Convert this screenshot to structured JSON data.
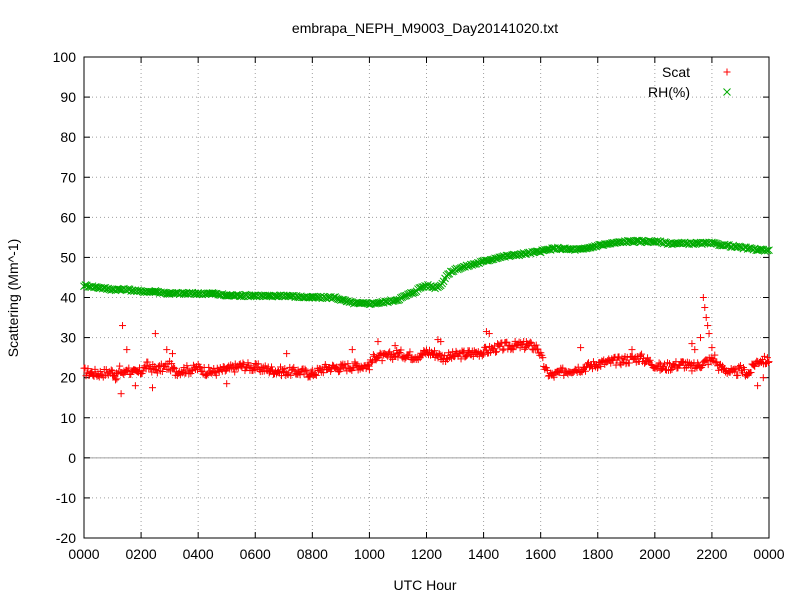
{
  "chart_data": {
    "type": "scatter",
    "title": "embrapa_NEPH_M9003_Day20141020.txt",
    "xlabel": "UTC Hour",
    "ylabel": "Scattering (Mm^-1)",
    "xlim": [
      0,
      24
    ],
    "ylim": [
      -20,
      100
    ],
    "x_tick_labels": [
      "0000",
      "0200",
      "0400",
      "0600",
      "0800",
      "1000",
      "1200",
      "1400",
      "1600",
      "1800",
      "2000",
      "2200",
      "0000"
    ],
    "y_tick_labels": [
      "-20",
      "-10",
      "0",
      "10",
      "20",
      "30",
      "40",
      "50",
      "60",
      "70",
      "80",
      "90",
      "100"
    ],
    "grid": true,
    "zero_line": true,
    "legend_position": "top-right",
    "series": [
      {
        "name": "Scat",
        "marker": "+",
        "color": "#ff0000",
        "x": [
          0.0,
          0.5,
          1.0,
          1.15,
          1.25,
          1.4,
          1.5,
          1.7,
          2.0,
          2.2,
          2.5,
          2.8,
          3.0,
          3.2,
          3.5,
          3.8,
          4.0,
          4.3,
          4.6,
          5.0,
          5.3,
          5.5,
          6.0,
          6.5,
          7.0,
          7.5,
          8.0,
          8.5,
          9.0,
          9.5,
          10.0,
          10.2,
          10.5,
          11.0,
          11.5,
          11.8,
          12.0,
          12.3,
          12.6,
          13.0,
          13.5,
          14.0,
          14.5,
          15.0,
          15.3,
          15.6,
          15.9,
          16.2,
          16.4,
          16.6,
          17.0,
          17.5,
          18.0,
          18.5,
          19.0,
          19.5,
          19.8,
          20.2,
          20.6,
          21.0,
          21.3,
          21.5,
          21.8,
          22.0,
          22.1,
          22.2,
          22.3,
          22.5,
          22.8,
          23.0,
          23.3,
          23.5,
          23.7,
          24.0
        ],
        "y": [
          21.5,
          21.0,
          21.5,
          20.0,
          22.0,
          21.0,
          22.5,
          21.0,
          21.5,
          23.0,
          22.0,
          22.5,
          23.0,
          21.5,
          22.0,
          22.0,
          22.5,
          21.5,
          21.5,
          22.0,
          22.5,
          23.0,
          22.5,
          22.0,
          21.5,
          21.5,
          21.0,
          22.5,
          22.5,
          23.0,
          23.0,
          25.5,
          25.0,
          26.0,
          25.5,
          25.5,
          26.5,
          26.0,
          25.0,
          25.5,
          26.0,
          26.5,
          27.5,
          28.0,
          28.0,
          28.0,
          27.5,
          21.5,
          20.5,
          21.0,
          22.0,
          22.5,
          23.5,
          24.0,
          24.5,
          25.0,
          24.0,
          22.5,
          23.0,
          23.5,
          22.5,
          23.0,
          24.0,
          24.5,
          25.0,
          23.0,
          22.5,
          22.0,
          21.0,
          22.0,
          21.0,
          23.5,
          24.5,
          24.0
        ],
        "outliers_x": [
          1.3,
          1.35,
          1.5,
          1.8,
          2.4,
          2.5,
          2.9,
          3.1,
          5.0,
          7.1,
          9.4,
          10.3,
          10.9,
          12.4,
          12.5,
          14.1,
          14.2,
          15.5,
          17.4,
          19.2,
          21.3,
          21.4,
          21.6,
          21.7,
          21.75,
          21.8,
          21.85,
          21.9,
          22.0,
          23.6,
          23.8
        ],
        "outliers_y": [
          16.0,
          33.0,
          27.0,
          18.0,
          17.5,
          31.0,
          27.0,
          26.0,
          18.5,
          26.0,
          27.0,
          29.0,
          28.0,
          29.5,
          29.0,
          31.5,
          31.0,
          29.0,
          27.5,
          27.0,
          28.5,
          27.0,
          30.0,
          40.0,
          37.5,
          35.0,
          33.0,
          31.0,
          27.5,
          18.0,
          20.0
        ]
      },
      {
        "name": "RH(%)",
        "marker": "x",
        "color": "#00aa00",
        "x": [
          0.0,
          0.5,
          1.0,
          1.5,
          2.0,
          2.5,
          3.0,
          3.5,
          4.0,
          4.5,
          5.0,
          5.5,
          6.0,
          6.5,
          7.0,
          7.5,
          8.0,
          8.5,
          8.8,
          9.0,
          9.3,
          9.6,
          10.0,
          10.5,
          11.0,
          11.3,
          11.6,
          11.8,
          12.0,
          12.3,
          12.5,
          12.7,
          13.0,
          13.5,
          14.0,
          14.5,
          15.0,
          15.5,
          16.0,
          16.3,
          16.6,
          17.0,
          17.5,
          18.0,
          18.5,
          19.0,
          19.5,
          20.0,
          20.5,
          21.0,
          21.5,
          22.0,
          22.5,
          23.0,
          23.5,
          24.0
        ],
        "y": [
          43.0,
          42.5,
          42.0,
          42.0,
          41.5,
          41.5,
          41.0,
          41.0,
          41.0,
          41.0,
          40.5,
          40.5,
          40.5,
          40.3,
          40.5,
          40.2,
          40.0,
          40.0,
          40.0,
          39.5,
          38.8,
          38.5,
          38.5,
          38.8,
          39.5,
          40.5,
          41.5,
          42.5,
          43.0,
          42.5,
          43.0,
          45.5,
          47.0,
          48.0,
          49.0,
          50.0,
          50.5,
          51.0,
          51.5,
          52.0,
          52.3,
          52.0,
          52.0,
          53.0,
          53.5,
          54.0,
          54.0,
          54.0,
          53.5,
          53.5,
          53.5,
          53.5,
          53.0,
          52.5,
          52.0,
          51.8
        ]
      }
    ]
  }
}
